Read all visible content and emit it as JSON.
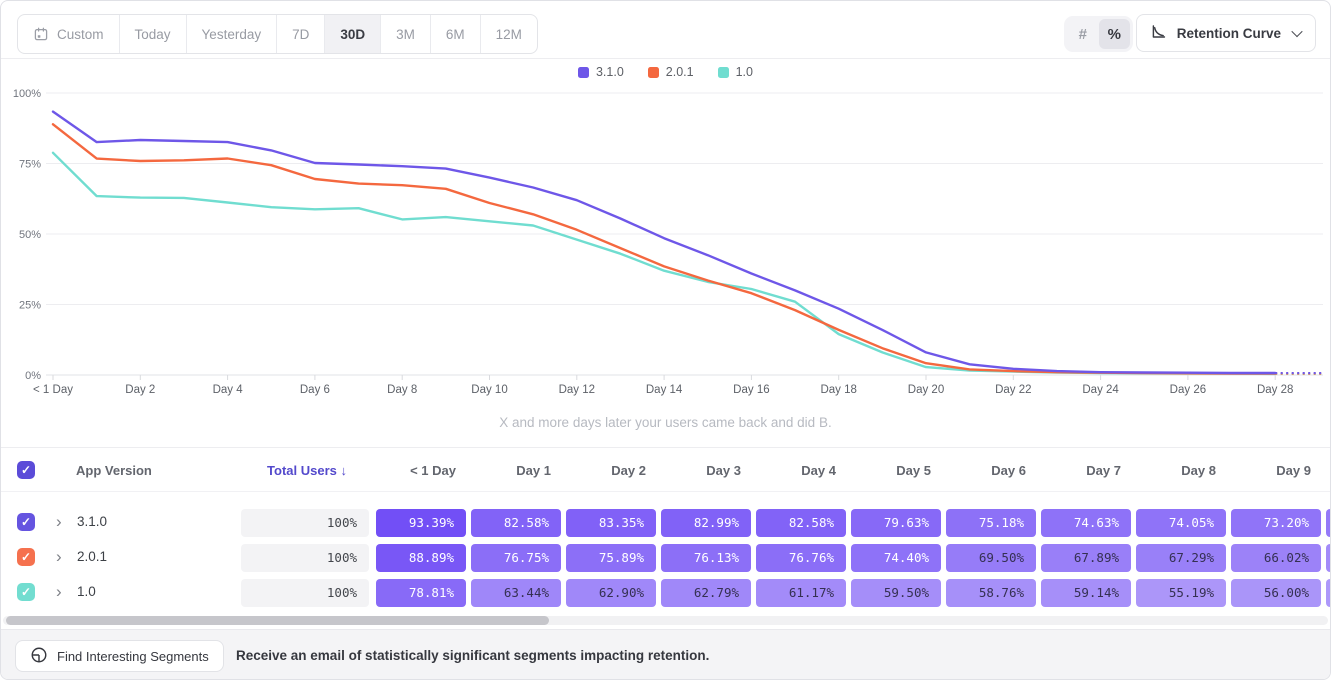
{
  "toolbar": {
    "date_ranges": [
      {
        "label": "Custom",
        "icon": "calendar-icon",
        "active": false
      },
      {
        "label": "Today",
        "active": false
      },
      {
        "label": "Yesterday",
        "active": false
      },
      {
        "label": "7D",
        "active": false
      },
      {
        "label": "30D",
        "active": true
      },
      {
        "label": "3M",
        "active": false
      },
      {
        "label": "6M",
        "active": false
      },
      {
        "label": "12M",
        "active": false
      }
    ],
    "value_mode": {
      "number_label": "#",
      "percent_label": "%",
      "active": "%"
    },
    "view_selector": {
      "label": "Retention Curve",
      "icon": "curve-icon"
    }
  },
  "chart": {
    "y_ticks": [
      "100%",
      "75%",
      "50%",
      "25%",
      "0%"
    ],
    "x_ticks": [
      "< 1 Day",
      "Day 2",
      "Day 4",
      "Day 6",
      "Day 8",
      "Day 10",
      "Day 12",
      "Day 14",
      "Day 16",
      "Day 18",
      "Day 20",
      "Day 22",
      "Day 24",
      "Day 26",
      "Day 28"
    ],
    "subtitle": "X and more days later your users came back and did B."
  },
  "chart_data": {
    "type": "line",
    "title": "Retention Curve",
    "x_label_unit": "day",
    "x": [
      0,
      1,
      2,
      3,
      4,
      5,
      6,
      7,
      8,
      9,
      10,
      11,
      12,
      13,
      14,
      15,
      16,
      17,
      18,
      19,
      20,
      21,
      22,
      23,
      24,
      25,
      26,
      27,
      28
    ],
    "ylim": [
      0,
      100
    ],
    "grid": true,
    "legend_position": "top-center",
    "projection_dashed_after_day": 28,
    "series": [
      {
        "name": "3.1.0",
        "color": "#6e57e8",
        "values": [
          93.39,
          82.58,
          83.35,
          82.99,
          82.58,
          79.63,
          75.18,
          74.63,
          74.05,
          73.2,
          70.0,
          66.5,
          62.0,
          55.5,
          48.5,
          42.5,
          36.0,
          30.0,
          23.5,
          16.0,
          8.0,
          3.8,
          2.2,
          1.4,
          1.0,
          0.9,
          0.8,
          0.7,
          0.7
        ]
      },
      {
        "name": "2.0.1",
        "color": "#f4683f",
        "values": [
          88.89,
          76.75,
          75.89,
          76.13,
          76.76,
          74.4,
          69.5,
          67.89,
          67.29,
          66.02,
          61.0,
          57.0,
          51.5,
          45.0,
          38.5,
          33.5,
          29.0,
          23.0,
          16.0,
          9.5,
          4.2,
          2.0,
          1.4,
          1.0,
          0.8,
          0.7,
          0.6,
          0.5,
          0.5
        ]
      },
      {
        "name": "1.0",
        "color": "#70ddd0",
        "values": [
          78.81,
          63.44,
          62.9,
          62.79,
          61.17,
          59.5,
          58.76,
          59.14,
          55.19,
          56.0,
          54.5,
          53.0,
          48.0,
          43.0,
          37.0,
          33.0,
          30.5,
          26.0,
          14.5,
          8.0,
          2.8,
          1.6,
          1.2,
          0.9,
          0.7,
          0.6,
          0.5,
          0.5,
          0.4
        ]
      }
    ]
  },
  "table": {
    "header": {
      "app_version": "App Version",
      "total_users": "Total Users",
      "sort_arrow": "↓",
      "sort_color": "#5349cc",
      "day_cols": [
        "< 1 Day",
        "Day 1",
        "Day 2",
        "Day 3",
        "Day 4",
        "Day 5",
        "Day 6",
        "Day 7",
        "Day 8",
        "Day 9"
      ]
    },
    "cell_base_color": "#6842f5",
    "rows": [
      {
        "version": "3.1.0",
        "checkbox_color": "#6554e0",
        "total": "100%",
        "values": [
          "93.39%",
          "82.58%",
          "83.35%",
          "82.99%",
          "82.58%",
          "79.63%",
          "75.18%",
          "74.63%",
          "74.05%",
          "73.20%"
        ]
      },
      {
        "version": "2.0.1",
        "checkbox_color": "#f5714e",
        "total": "100%",
        "values": [
          "88.89%",
          "76.75%",
          "75.89%",
          "76.13%",
          "76.76%",
          "74.40%",
          "69.50%",
          "67.89%",
          "67.29%",
          "66.02%"
        ]
      },
      {
        "version": "1.0",
        "checkbox_color": "#72ddd0",
        "total": "100%",
        "values": [
          "78.81%",
          "63.44%",
          "62.90%",
          "62.79%",
          "61.17%",
          "59.50%",
          "58.76%",
          "59.14%",
          "55.19%",
          "56.00%"
        ]
      }
    ]
  },
  "footer": {
    "button_label": "Find Interesting Segments",
    "button_icon": "segment-icon",
    "message": "Receive an email of statistically significant segments impacting retention."
  }
}
